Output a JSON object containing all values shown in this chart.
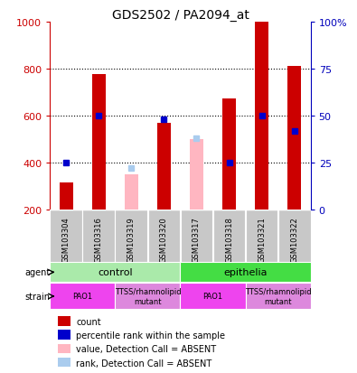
{
  "title": "GDS2502 / PA2094_at",
  "samples": [
    "GSM103304",
    "GSM103316",
    "GSM103319",
    "GSM103320",
    "GSM103317",
    "GSM103318",
    "GSM103321",
    "GSM103322"
  ],
  "counts": [
    315,
    775,
    null,
    570,
    null,
    675,
    1000,
    810
  ],
  "counts_absent": [
    null,
    null,
    350,
    null,
    500,
    null,
    null,
    null
  ],
  "percentile_ranks": [
    25,
    50,
    null,
    48,
    null,
    25,
    50,
    42
  ],
  "percentile_ranks_absent": [
    null,
    null,
    22,
    null,
    38,
    null,
    null,
    null
  ],
  "ylim_left": [
    200,
    1000
  ],
  "ylim_right": [
    0,
    100
  ],
  "yticks_left": [
    200,
    400,
    600,
    800,
    1000
  ],
  "yticks_right": [
    0,
    25,
    50,
    75,
    100
  ],
  "ytick_labels_right": [
    "0",
    "25",
    "50",
    "75",
    "100%"
  ],
  "agent_groups": [
    {
      "label": "control",
      "start": 0,
      "end": 4,
      "color": "#AAEAAA"
    },
    {
      "label": "epithelia",
      "start": 4,
      "end": 8,
      "color": "#44DD44"
    }
  ],
  "strain_groups": [
    {
      "label": "PAO1",
      "start": 0,
      "end": 2,
      "color": "#EE44EE"
    },
    {
      "label": "TTSS/rhamnolipid\nmutant",
      "start": 2,
      "end": 4,
      "color": "#EE88EE"
    },
    {
      "label": "PAO1",
      "start": 4,
      "end": 6,
      "color": "#EE44EE"
    },
    {
      "label": "TTSS/rhamnolipid\nmutant",
      "start": 6,
      "end": 8,
      "color": "#EE88EE"
    }
  ],
  "bar_width": 0.4,
  "count_color": "#CC0000",
  "count_absent_color": "#FFB6C1",
  "rank_color": "#0000CC",
  "rank_absent_color": "#AACCEE",
  "sample_bg_color": "#C8C8C8",
  "grid_color": "black",
  "left_axis_color": "#CC0000",
  "right_axis_color": "#0000BB",
  "legend_items": [
    {
      "label": "count",
      "color": "#CC0000"
    },
    {
      "label": "percentile rank within the sample",
      "color": "#0000CC"
    },
    {
      "label": "value, Detection Call = ABSENT",
      "color": "#FFB6C1"
    },
    {
      "label": "rank, Detection Call = ABSENT",
      "color": "#AACCEE"
    }
  ]
}
